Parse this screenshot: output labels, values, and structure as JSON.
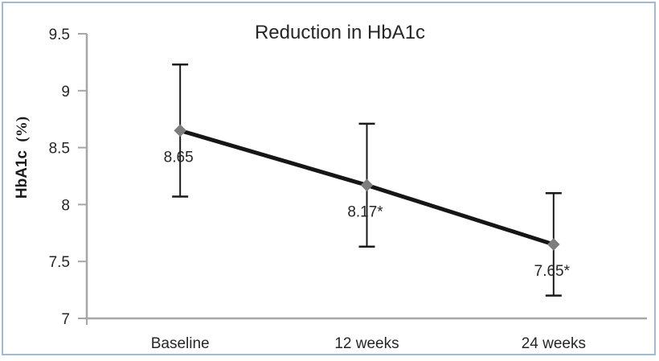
{
  "figure": {
    "border_color": "#a4b9d2",
    "background_color": "#ffffff"
  },
  "chart_data": {
    "type": "line",
    "title": "Reduction in HbA1c",
    "xlabel": "",
    "ylabel": "HbA1c (%)",
    "ylabel_main": "HbA1c",
    "ylabel_unit": "(%)",
    "categories": [
      "Baseline",
      "12 weeks",
      "24 weeks"
    ],
    "series": [
      {
        "name": "HbA1c",
        "values": [
          8.65,
          8.17,
          7.65
        ],
        "data_labels": [
          "8.65",
          "8.17*",
          "7.65*"
        ],
        "error_bars": [
          {
            "upper": 9.23,
            "lower": 8.07
          },
          {
            "upper": 8.71,
            "lower": 7.63
          },
          {
            "upper": 8.1,
            "lower": 7.2
          }
        ]
      }
    ],
    "ylim": [
      7,
      9.5
    ],
    "ytick_step": 0.5,
    "yticks": [
      "7",
      "7.5",
      "8",
      "8.5",
      "9",
      "9.5"
    ],
    "grid": false,
    "legend": false,
    "marker_shape": "diamond",
    "colors": {
      "line": "#161616",
      "marker": "#7d7d7d",
      "error_bar": "#1a1a1a",
      "axis": "#a6a6a6",
      "text": "#262626",
      "title": "#262626"
    }
  }
}
